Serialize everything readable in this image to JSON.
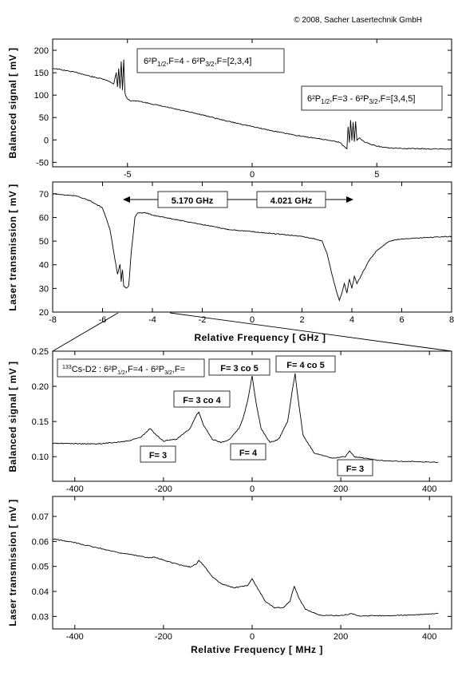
{
  "copyright": "© 2008, Sacher Lasertechnik GmbH",
  "chart_data": [
    {
      "type": "line",
      "id": "balanced-ghz",
      "ylabel": "Balanced signal [ mV ]",
      "xlim": [
        -8,
        8
      ],
      "ylim": [
        -60,
        225
      ],
      "xticks": [
        -5,
        0,
        5
      ],
      "yticks": [
        -50,
        0,
        50,
        100,
        150,
        200
      ],
      "xtick_labels": [
        "-5",
        "0",
        "5"
      ],
      "ytick_labels": [
        "-50",
        "0",
        "50",
        "100",
        "150",
        "200"
      ],
      "series": [
        {
          "values": [
            [
              -8,
              160
            ],
            [
              -7.5,
              155
            ],
            [
              -7,
              150
            ],
            [
              -6.5,
              142
            ],
            [
              -6,
              136
            ],
            [
              -5.7,
              130
            ],
            [
              -5.55,
              125
            ],
            [
              -5.45,
              150
            ],
            [
              -5.4,
              118
            ],
            [
              -5.35,
              160
            ],
            [
              -5.3,
              115
            ],
            [
              -5.25,
              175
            ],
            [
              -5.2,
              112
            ],
            [
              -5.15,
              180
            ],
            [
              -5.1,
              105
            ],
            [
              -5.05,
              95
            ],
            [
              -4.9,
              88
            ],
            [
              -4.5,
              86
            ],
            [
              -4,
              80
            ],
            [
              -3,
              68
            ],
            [
              -2,
              56
            ],
            [
              -1,
              42
            ],
            [
              0,
              30
            ],
            [
              1,
              18
            ],
            [
              2,
              8
            ],
            [
              3,
              0
            ],
            [
              3.5,
              -5
            ],
            [
              3.7,
              -15
            ],
            [
              3.8,
              -20
            ],
            [
              3.85,
              30
            ],
            [
              3.9,
              -5
            ],
            [
              3.95,
              45
            ],
            [
              4.0,
              -2
            ],
            [
              4.05,
              40
            ],
            [
              4.1,
              -5
            ],
            [
              4.15,
              42
            ],
            [
              4.2,
              0
            ],
            [
              4.3,
              5
            ],
            [
              4.5,
              -5
            ],
            [
              5,
              -14
            ],
            [
              5.5,
              -18
            ],
            [
              6,
              -19
            ],
            [
              7,
              -20
            ],
            [
              8,
              -20
            ]
          ]
        }
      ],
      "annotations": [
        {
          "lines": [
            "6²P",
            "1/2",
            ",F=4 - 6²P",
            "3/2",
            ",F=[2,3,4]"
          ]
        },
        {
          "lines": [
            "6²P",
            "1/2",
            ",F=3 - 6²P",
            "3/2",
            ",F=[3,4,5]"
          ]
        }
      ]
    },
    {
      "type": "line",
      "id": "transmission-ghz",
      "ylabel": "Laser transmission [ mV ]",
      "xlabel": "Relative Frequency [ GHz ]",
      "xlim": [
        -8,
        8
      ],
      "ylim": [
        20,
        75
      ],
      "xticks": [
        -8,
        -6,
        -4,
        -2,
        0,
        2,
        4,
        6,
        8
      ],
      "yticks": [
        20,
        30,
        40,
        50,
        60,
        70
      ],
      "xtick_labels": [
        "-8",
        "-6",
        "-4",
        "-2",
        "0",
        "2",
        "4",
        "6",
        "8"
      ],
      "ytick_labels": [
        "20",
        "30",
        "40",
        "50",
        "60",
        "70"
      ],
      "series": [
        {
          "values": [
            [
              -8,
              70
            ],
            [
              -7,
              69
            ],
            [
              -6.5,
              67
            ],
            [
              -6,
              64
            ],
            [
              -5.7,
              55
            ],
            [
              -5.5,
              42
            ],
            [
              -5.4,
              36
            ],
            [
              -5.3,
              40
            ],
            [
              -5.25,
              33
            ],
            [
              -5.2,
              38
            ],
            [
              -5.15,
              31
            ],
            [
              -5.05,
              30
            ],
            [
              -4.95,
              31
            ],
            [
              -4.85,
              45
            ],
            [
              -4.7,
              60
            ],
            [
              -4.6,
              62
            ],
            [
              -4.3,
              62
            ],
            [
              -4,
              61
            ],
            [
              -3,
              59
            ],
            [
              -2,
              57
            ],
            [
              -1,
              55
            ],
            [
              0,
              54
            ],
            [
              1,
              53
            ],
            [
              2,
              52
            ],
            [
              2.5,
              51
            ],
            [
              2.8,
              50
            ],
            [
              3.0,
              45
            ],
            [
              3.2,
              36
            ],
            [
              3.4,
              28
            ],
            [
              3.5,
              25
            ],
            [
              3.6,
              28
            ],
            [
              3.7,
              32
            ],
            [
              3.8,
              28
            ],
            [
              3.9,
              34
            ],
            [
              4.0,
              30
            ],
            [
              4.1,
              35
            ],
            [
              4.2,
              32
            ],
            [
              4.4,
              36
            ],
            [
              4.7,
              42
            ],
            [
              5,
              46
            ],
            [
              5.5,
              50
            ],
            [
              6,
              51
            ],
            [
              7,
              51.5
            ],
            [
              8,
              52
            ]
          ]
        }
      ],
      "annotations": [
        {
          "text": "5.170 GHz",
          "span": [
            -5.17,
            0
          ]
        },
        {
          "text": "4.021 GHz",
          "span": [
            0,
            4.021
          ]
        }
      ]
    },
    {
      "type": "line",
      "id": "balanced-mhz",
      "ylabel": "Balanced signal [ mV ]",
      "xlim": [
        -450,
        450
      ],
      "ylim": [
        0.065,
        0.25
      ],
      "xticks": [
        -400,
        -200,
        0,
        200,
        400
      ],
      "yticks": [
        0.1,
        0.15,
        0.2,
        0.25
      ],
      "xtick_labels": [
        "-400",
        "-200",
        "0",
        "200",
        "400"
      ],
      "ytick_labels": [
        "0.10",
        "0.15",
        "0.20",
        "0.25"
      ],
      "series": [
        {
          "values": [
            [
              -450,
              0.119
            ],
            [
              -350,
              0.118
            ],
            [
              -280,
              0.122
            ],
            [
              -250,
              0.128
            ],
            [
              -230,
              0.14
            ],
            [
              -220,
              0.133
            ],
            [
              -200,
              0.122
            ],
            [
              -170,
              0.125
            ],
            [
              -140,
              0.14
            ],
            [
              -125,
              0.16
            ],
            [
              -120,
              0.163
            ],
            [
              -110,
              0.145
            ],
            [
              -90,
              0.125
            ],
            [
              -70,
              0.12
            ],
            [
              -50,
              0.125
            ],
            [
              -30,
              0.14
            ],
            [
              -20,
              0.155
            ],
            [
              -10,
              0.18
            ],
            [
              0,
              0.215
            ],
            [
              8,
              0.18
            ],
            [
              20,
              0.14
            ],
            [
              40,
              0.12
            ],
            [
              60,
              0.125
            ],
            [
              80,
              0.15
            ],
            [
              92,
              0.2
            ],
            [
              97,
              0.218
            ],
            [
              102,
              0.19
            ],
            [
              115,
              0.13
            ],
            [
              140,
              0.105
            ],
            [
              180,
              0.098
            ],
            [
              210,
              0.1
            ],
            [
              220,
              0.108
            ],
            [
              230,
              0.1
            ],
            [
              280,
              0.095
            ],
            [
              350,
              0.093
            ],
            [
              420,
              0.092
            ]
          ]
        }
      ],
      "annotations": [
        {
          "lines": [
            "133",
            "Cs-D2 :  6²P",
            "1/2",
            ",F=4 - 6²P",
            "3/2",
            ",F="
          ]
        },
        {
          "text": "F= 3 co 4",
          "x": -120
        },
        {
          "text": "F= 3 co 5",
          "x": 0
        },
        {
          "text": "F= 4 co 5",
          "x": 97
        },
        {
          "text": "F= 3",
          "x": -230
        },
        {
          "text": "F= 4",
          "x": -20
        },
        {
          "text": "F= 3",
          "x": 220
        }
      ]
    },
    {
      "type": "line",
      "id": "transmission-mhz",
      "ylabel": "Laser transmission [ mV ]",
      "xlabel": "Relative Frequency [ MHz ]",
      "xlim": [
        -450,
        450
      ],
      "ylim": [
        0.025,
        0.078
      ],
      "xticks": [
        -400,
        -200,
        0,
        200,
        400
      ],
      "yticks": [
        0.03,
        0.04,
        0.05,
        0.06,
        0.07
      ],
      "xtick_labels": [
        "-400",
        "-200",
        "0",
        "200",
        "400"
      ],
      "ytick_labels": [
        "0.03",
        "0.04",
        "0.05",
        "0.06",
        "0.07"
      ],
      "series": [
        {
          "values": [
            [
              -450,
              0.061
            ],
            [
              -400,
              0.0595
            ],
            [
              -350,
              0.0575
            ],
            [
              -300,
              0.0555
            ],
            [
              -250,
              0.054
            ],
            [
              -230,
              0.0535
            ],
            [
              -220,
              0.0538
            ],
            [
              -200,
              0.0525
            ],
            [
              -160,
              0.0505
            ],
            [
              -140,
              0.0498
            ],
            [
              -125,
              0.051
            ],
            [
              -120,
              0.0525
            ],
            [
              -110,
              0.0505
            ],
            [
              -90,
              0.046
            ],
            [
              -70,
              0.043
            ],
            [
              -40,
              0.0415
            ],
            [
              -20,
              0.042
            ],
            [
              -10,
              0.0425
            ],
            [
              0,
              0.045
            ],
            [
              10,
              0.042
            ],
            [
              30,
              0.036
            ],
            [
              50,
              0.0335
            ],
            [
              70,
              0.0335
            ],
            [
              85,
              0.036
            ],
            [
              95,
              0.0422
            ],
            [
              105,
              0.0375
            ],
            [
              120,
              0.033
            ],
            [
              150,
              0.0305
            ],
            [
              200,
              0.0303
            ],
            [
              215,
              0.0308
            ],
            [
              225,
              0.0312
            ],
            [
              240,
              0.0302
            ],
            [
              300,
              0.0303
            ],
            [
              350,
              0.0305
            ],
            [
              420,
              0.0312
            ]
          ]
        }
      ]
    }
  ]
}
